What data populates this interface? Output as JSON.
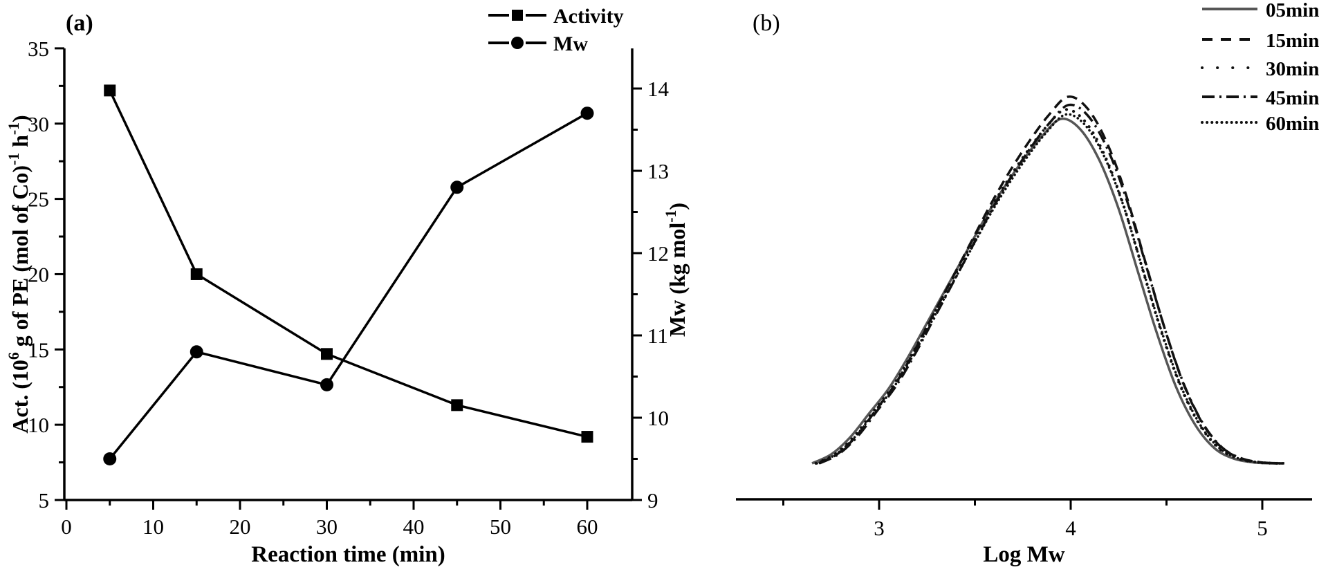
{
  "chart_data": [
    {
      "type": "line",
      "panel_label": "(a)",
      "xlabel": "Reaction time (min)",
      "x_range": [
        0,
        65
      ],
      "x_ticks": [
        0,
        10,
        20,
        30,
        40,
        50,
        60
      ],
      "x_minor_ticks": [
        5,
        15,
        25,
        35,
        45,
        55
      ],
      "y_left": {
        "label": "Act. (10^6 g of PE (mol of Co)^-1 h^-1)",
        "label_parts": [
          {
            "text": "Act. (10",
            "sup": false
          },
          {
            "text": "6",
            "sup": true
          },
          {
            "text": " g of PE (mol of Co)",
            "sup": false
          },
          {
            "text": "-1",
            "sup": true
          },
          {
            "text": " h",
            "sup": false
          },
          {
            "text": "-1",
            "sup": true
          },
          {
            "text": ")",
            "sup": false
          }
        ],
        "range": [
          5,
          35.05
        ],
        "ticks": [
          5,
          10,
          15,
          20,
          25,
          30,
          35
        ],
        "minor_ticks": [
          7.5,
          12.5,
          17.5,
          22.5,
          27.5,
          32.5
        ]
      },
      "y_right": {
        "label": "Mw (kg mol^-1)",
        "label_parts": [
          {
            "text": "Mw (kg mol",
            "sup": false
          },
          {
            "text": "-1",
            "sup": true
          },
          {
            "text": ")",
            "sup": false
          }
        ],
        "range": [
          9,
          14.46
        ],
        "ticks": [
          9,
          10,
          11,
          12,
          13,
          14
        ],
        "minor_ticks": [
          9.5,
          10.5,
          11.5,
          12.5,
          13.5
        ]
      },
      "x": [
        5,
        15,
        30,
        45,
        60
      ],
      "series": [
        {
          "name": "Activity",
          "axis": "left",
          "marker": "square",
          "color": "#000000",
          "values": [
            32.2,
            20.0,
            14.7,
            11.3,
            9.2
          ]
        },
        {
          "name": "Mw",
          "axis": "right",
          "marker": "circle",
          "color": "#000000",
          "values": [
            9.5,
            10.8,
            10.4,
            12.8,
            13.7
          ]
        }
      ],
      "legend_position": "top-right",
      "grid": false
    },
    {
      "type": "line",
      "panel_label": "(b)",
      "xlabel": "Log Mw",
      "x_range": [
        2.25,
        5.26
      ],
      "x_ticks": [
        3,
        4,
        5
      ],
      "x_minor_ticks": [
        2.5,
        3.5,
        4.5
      ],
      "ylabel": "",
      "y_axis_shown": false,
      "profile_x": [
        2.65,
        2.75,
        2.85,
        2.95,
        3.05,
        3.15,
        3.25,
        3.35,
        3.45,
        3.55,
        3.65,
        3.75,
        3.85,
        3.95,
        4.05,
        4.15,
        4.25,
        4.35,
        4.45,
        4.55,
        4.65,
        4.75,
        4.85,
        4.95,
        5.05,
        5.08
      ],
      "profile_y": [
        0.004,
        0.03,
        0.08,
        0.15,
        0.22,
        0.31,
        0.41,
        0.51,
        0.61,
        0.71,
        0.8,
        0.88,
        0.95,
        1.0,
        0.97,
        0.88,
        0.74,
        0.56,
        0.38,
        0.225,
        0.115,
        0.048,
        0.018,
        0.007,
        0.004,
        0.004
      ],
      "series": [
        {
          "name": "05min",
          "style": "solid",
          "color": "#565656",
          "dx": 0.0,
          "peak_scale": 0.94
        },
        {
          "name": "15min",
          "style": "dashed",
          "color": "#111111",
          "dx": 0.035,
          "peak_scale": 1.0
        },
        {
          "name": "30min",
          "style": "dotted",
          "color": "#111111",
          "dx": 0.02,
          "peak_scale": 0.965
        },
        {
          "name": "45min",
          "style": "dash-dot",
          "color": "#111111",
          "dx": 0.04,
          "peak_scale": 0.978
        },
        {
          "name": "60min",
          "style": "fine-dotted",
          "color": "#111111",
          "dx": 0.025,
          "peak_scale": 0.952
        }
      ],
      "legend_position": "top-right",
      "grid": false
    }
  ],
  "colors": {
    "ink": "#000000",
    "gray_curve": "#565656",
    "background": "#ffffff"
  }
}
